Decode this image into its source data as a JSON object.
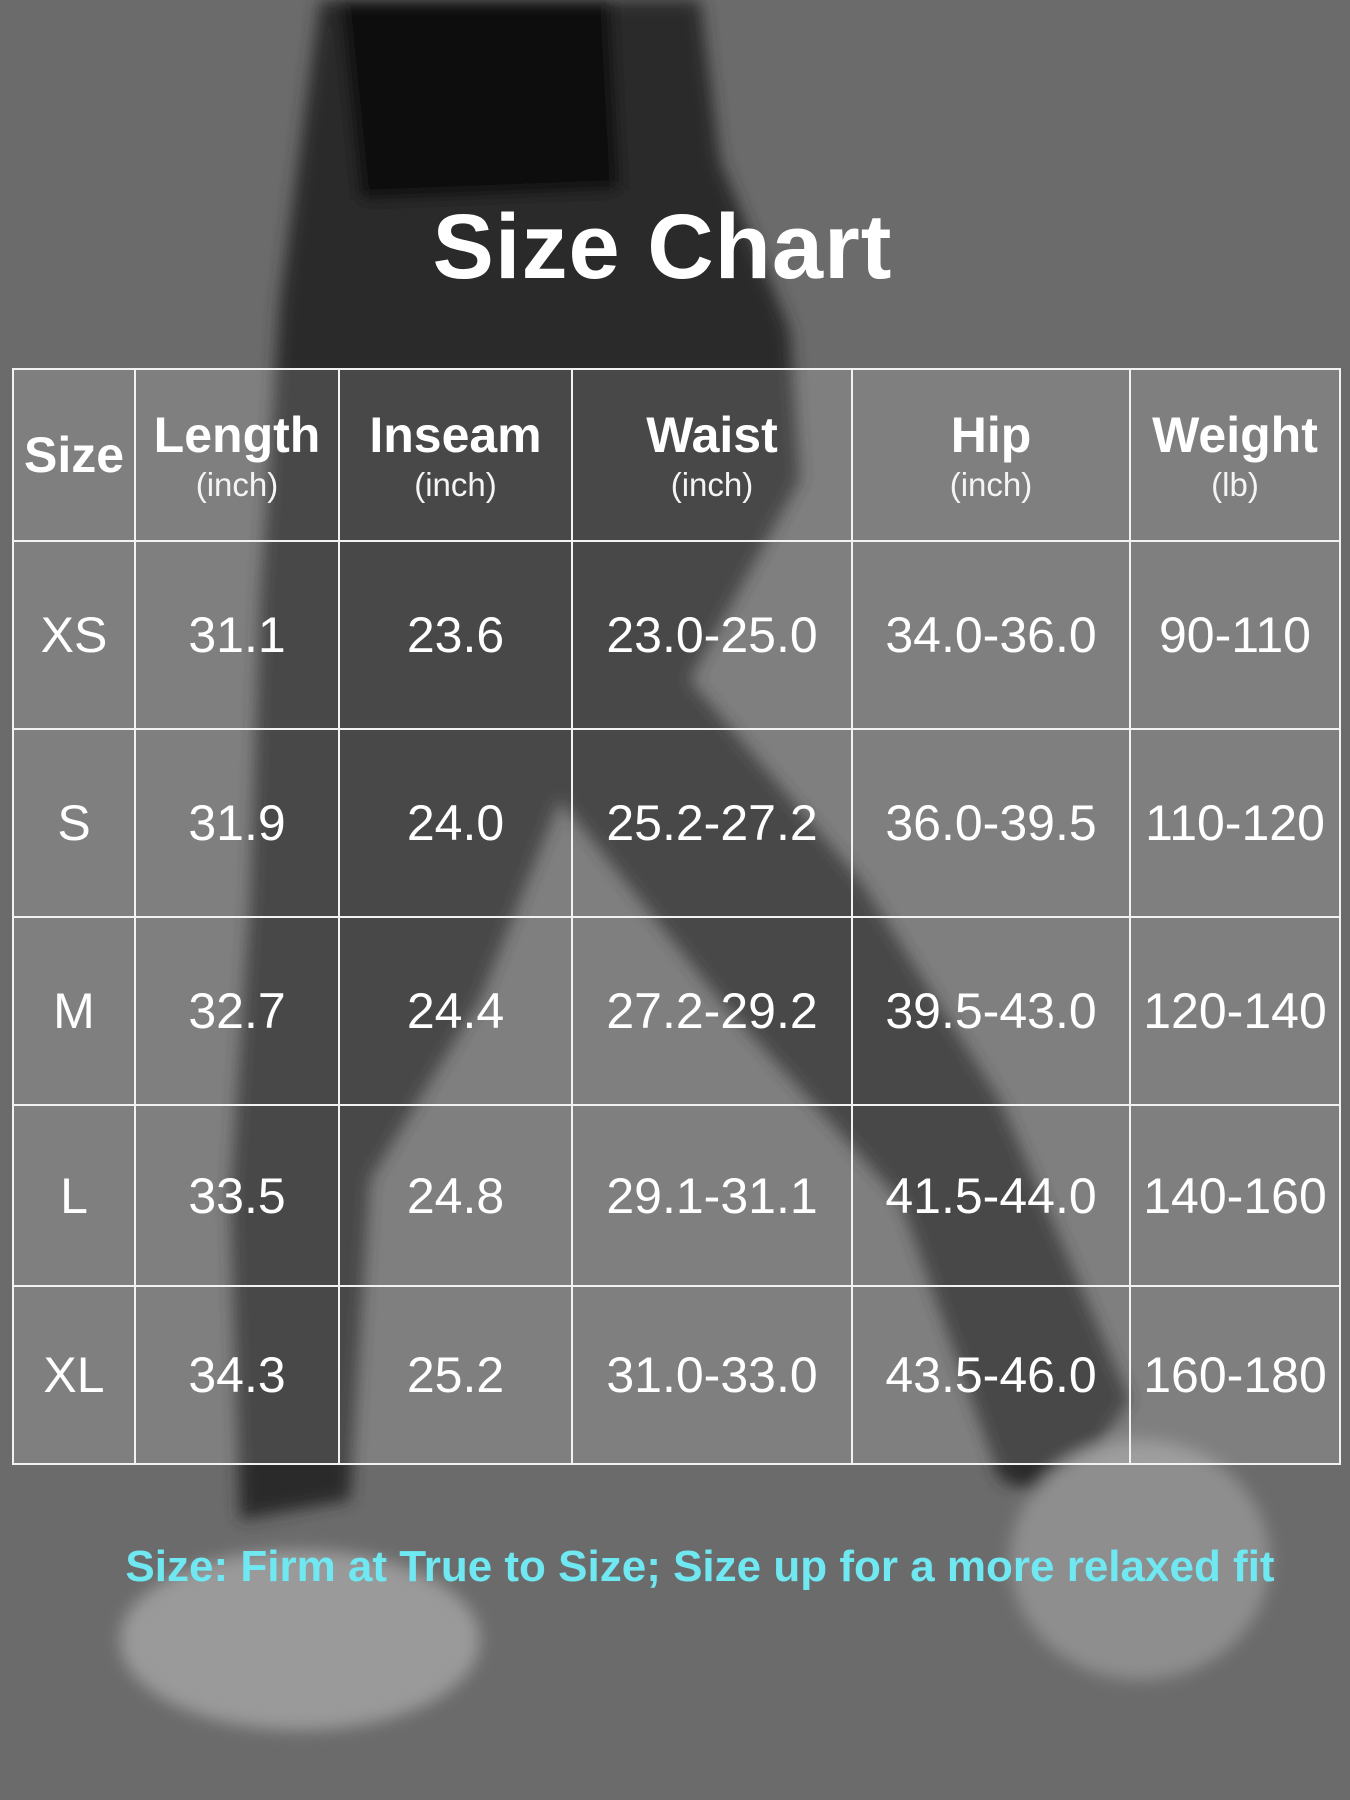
{
  "title": "Size Chart",
  "columns": [
    {
      "label": "Size",
      "unit": ""
    },
    {
      "label": "Length",
      "unit": "(inch)"
    },
    {
      "label": "Inseam",
      "unit": "(inch)"
    },
    {
      "label": "Waist",
      "unit": "(inch)"
    },
    {
      "label": "Hip",
      "unit": "(inch)"
    },
    {
      "label": "Weight",
      "unit": "(lb)"
    }
  ],
  "rows": [
    [
      "XS",
      "31.1",
      "23.6",
      "23.0-25.0",
      "34.0-36.0",
      "90-110"
    ],
    [
      "S",
      "31.9",
      "24.0",
      "25.2-27.2",
      "36.0-39.5",
      "110-120"
    ],
    [
      "M",
      "32.7",
      "24.4",
      "27.2-29.2",
      "39.5-43.0",
      "120-140"
    ],
    [
      "L",
      "33.5",
      "24.8",
      "29.1-31.1",
      "41.5-44.0",
      "140-160"
    ],
    [
      "XL",
      "34.3",
      "25.2",
      "31.0-33.0",
      "43.5-46.0",
      "160-180"
    ]
  ],
  "note": "Size: Firm at True to Size; Size up for a more relaxed fit",
  "colors": {
    "note": "#6fe8f2",
    "background": "#6b6b6b"
  }
}
